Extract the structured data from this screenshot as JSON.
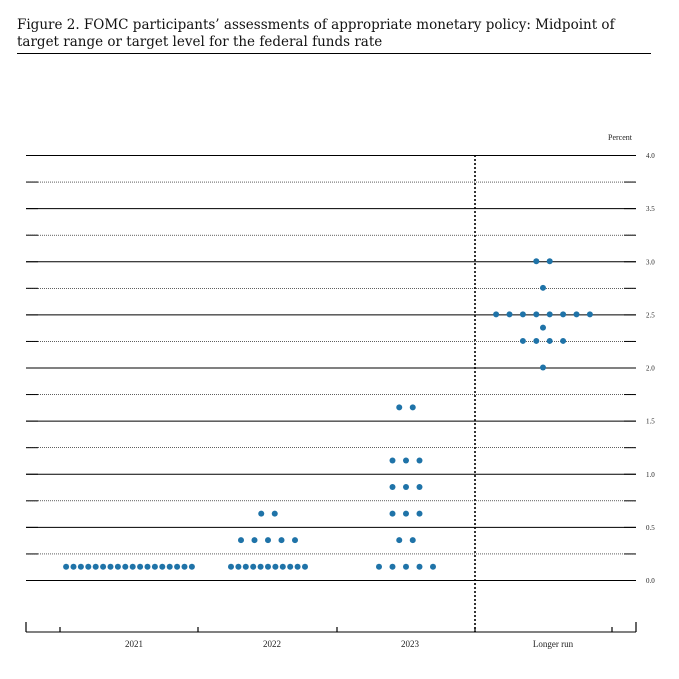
{
  "figure": {
    "title": "Figure 2.  FOMC participants’ assessments of appropriate monetary policy:  Midpoint of target range or target level for the federal funds rate"
  },
  "chart_data": {
    "type": "scatter",
    "ylabel": "Percent",
    "ylim": [
      0,
      4
    ],
    "ytick_step": 0.25,
    "yticks_labeled": [
      "0.0",
      "0.5",
      "1.0",
      "1.5",
      "2.0",
      "2.5",
      "3.0",
      "3.5",
      "4.0"
    ],
    "categories": [
      "2021",
      "2022",
      "2023",
      "Longer run"
    ],
    "dot_color": "#1f73a8",
    "series": [
      {
        "category": "2021",
        "points": [
          {
            "y": 0.125,
            "count": 18
          }
        ]
      },
      {
        "category": "2022",
        "points": [
          {
            "y": 0.125,
            "count": 11
          },
          {
            "y": 0.375,
            "count": 5
          },
          {
            "y": 0.625,
            "count": 2
          }
        ]
      },
      {
        "category": "2023",
        "points": [
          {
            "y": 0.125,
            "count": 5
          },
          {
            "y": 0.375,
            "count": 2
          },
          {
            "y": 0.625,
            "count": 3
          },
          {
            "y": 0.875,
            "count": 3
          },
          {
            "y": 1.125,
            "count": 3
          },
          {
            "y": 1.625,
            "count": 2
          }
        ]
      },
      {
        "category": "Longer run",
        "points": [
          {
            "y": 2.0,
            "count": 1
          },
          {
            "y": 2.25,
            "count": 4
          },
          {
            "y": 2.375,
            "count": 1
          },
          {
            "y": 2.5,
            "count": 8
          },
          {
            "y": 2.75,
            "count": 1
          },
          {
            "y": 3.0,
            "count": 2
          }
        ]
      }
    ]
  }
}
